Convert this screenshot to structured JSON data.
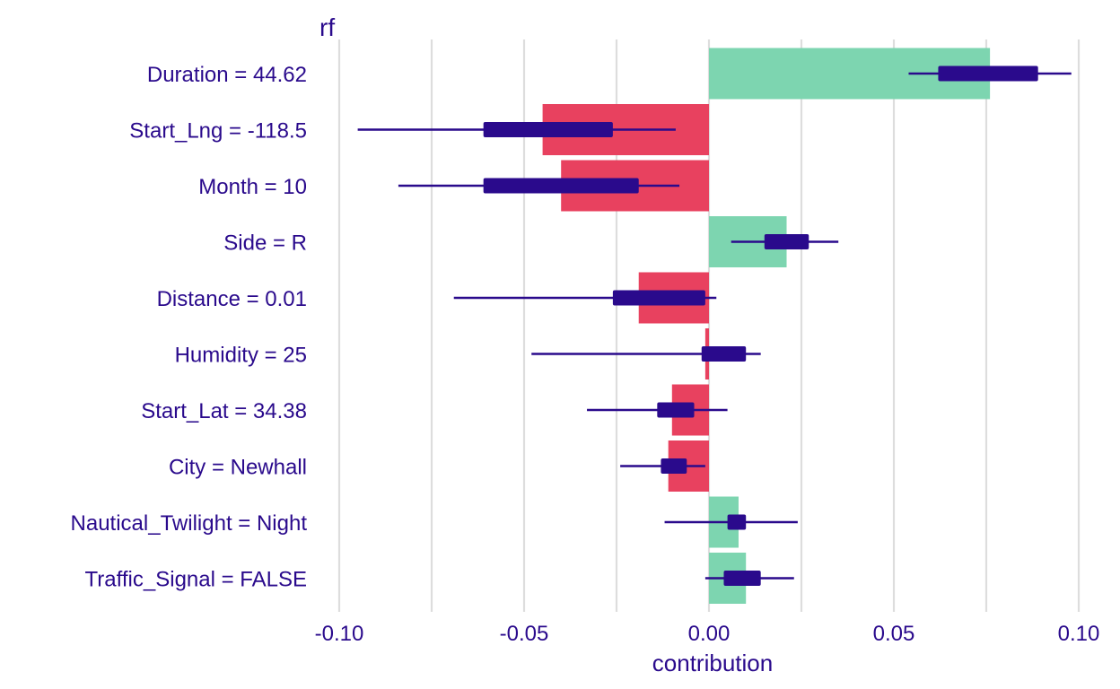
{
  "chart_data": {
    "type": "bar",
    "title": "rf",
    "xlabel": "contribution",
    "ylabel": "",
    "xlim": [
      -0.1,
      0.1
    ],
    "x_ticks": [
      -0.1,
      -0.05,
      0.0,
      0.05,
      0.1
    ],
    "x_tick_labels": [
      "-0.10",
      "-0.05",
      "0.00",
      "0.05",
      "0.10"
    ],
    "grid": true,
    "orientation": "horizontal",
    "colors": {
      "positive": "#7dd5b0",
      "negative": "#e8415f",
      "interval": "#2a0a8c",
      "text": "#2a0a8c",
      "grid": "#dddddd"
    },
    "categories": [
      "Duration = 44.62",
      "Start_Lng = -118.5",
      "Month = 10",
      "Side = R",
      "Distance = 0.01",
      "Humidity = 25",
      "Start_Lat = 34.38",
      "City = Newhall",
      "Nautical_Twilight = Night",
      "Traffic_Signal = FALSE"
    ],
    "values": [
      0.076,
      -0.045,
      -0.04,
      0.021,
      -0.019,
      -0.001,
      -0.01,
      -0.011,
      0.008,
      0.01
    ],
    "whisker_low": [
      0.054,
      -0.095,
      -0.084,
      0.006,
      -0.069,
      -0.048,
      -0.033,
      -0.024,
      -0.012,
      -0.001
    ],
    "whisker_high": [
      0.098,
      -0.009,
      -0.008,
      0.035,
      0.002,
      0.014,
      0.005,
      -0.001,
      0.024,
      0.023
    ],
    "box_low": [
      0.062,
      -0.061,
      -0.061,
      0.015,
      -0.026,
      -0.002,
      -0.014,
      -0.013,
      0.005,
      0.004
    ],
    "box_high": [
      0.089,
      -0.026,
      -0.019,
      0.027,
      -0.001,
      0.01,
      -0.004,
      -0.006,
      0.01,
      0.014
    ]
  }
}
